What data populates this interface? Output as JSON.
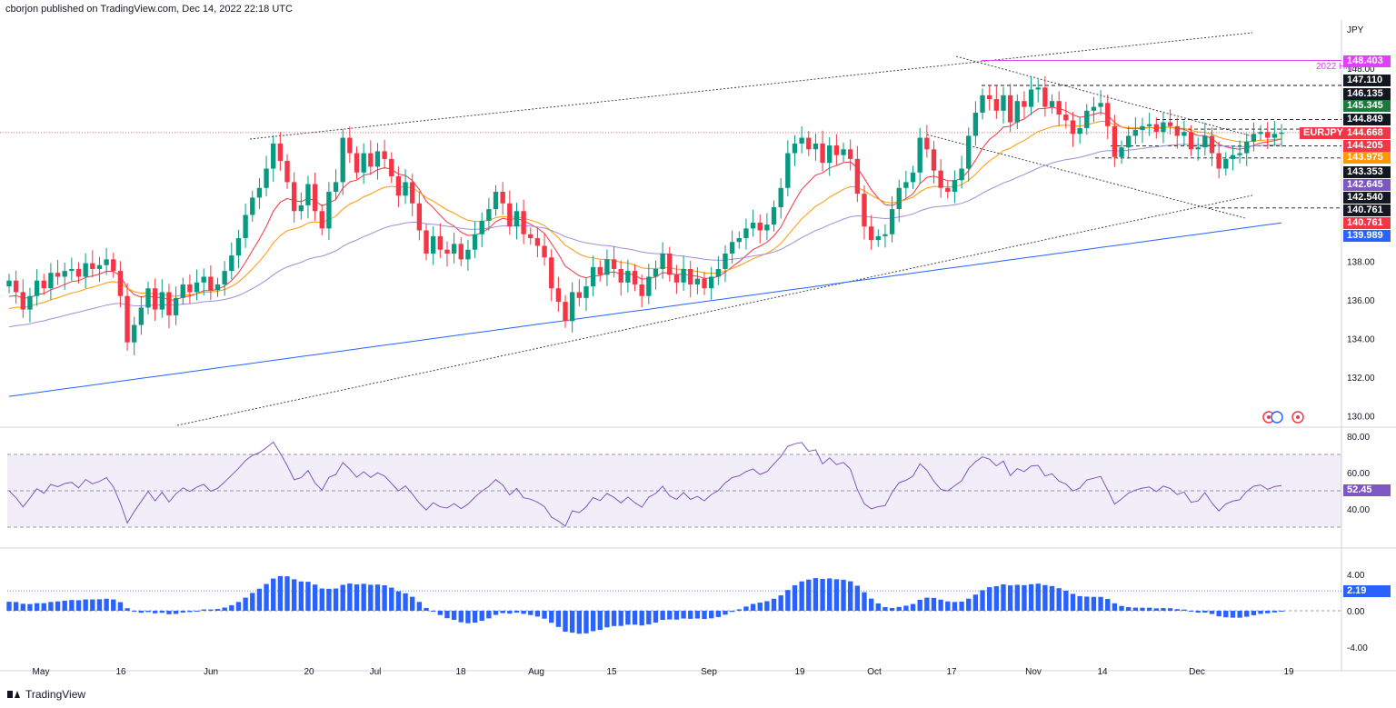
{
  "header": {
    "publisher_line": "cborjon published on TradingView.com, Dec 14, 2022 22:18 UTC"
  },
  "footer": {
    "brand": "TradingView"
  },
  "chart_data": {
    "type": "candlestick",
    "symbol": "EURJPY",
    "currency": "JPY",
    "price_axis": {
      "min": 129.5,
      "max": 150.5,
      "ticks": [
        130,
        132,
        134,
        136,
        138,
        140,
        142,
        144,
        146,
        148
      ]
    },
    "x_ticks": [
      "May",
      "16",
      "Jun",
      "20",
      "Jul",
      "18",
      "Aug",
      "15",
      "Sep",
      "19",
      "Oct",
      "17",
      "Nov",
      "14",
      "Dec",
      "19"
    ],
    "closes": [
      137,
      136.4,
      135.5,
      136.2,
      137.0,
      136.6,
      137.4,
      137.2,
      137.5,
      137.6,
      137.2,
      137.9,
      137.6,
      137.8,
      138.1,
      137.5,
      136.2,
      133.8,
      134.7,
      135.6,
      136.6,
      135.5,
      136.4,
      135.2,
      136.1,
      136.8,
      136.4,
      136.9,
      137.2,
      136.5,
      136.8,
      137.5,
      138.3,
      139.2,
      140.4,
      141.3,
      141.8,
      142.8,
      144.1,
      143.2,
      142.1,
      140.6,
      140.9,
      142.0,
      140.6,
      139.7,
      141.6,
      142.1,
      144.4,
      143.6,
      142.6,
      143.6,
      142.9,
      143.7,
      143.3,
      142.4,
      141.4,
      142.1,
      141.0,
      139.6,
      138.4,
      139.3,
      138.6,
      138.4,
      138.9,
      138.1,
      138.6,
      139.4,
      140.1,
      140.7,
      141.6,
      141.0,
      139.8,
      140.6,
      139.4,
      139.2,
      138.8,
      138.2,
      136.6,
      135.9,
      134.9,
      136.4,
      136.1,
      136.7,
      137.7,
      137.3,
      138.1,
      137.6,
      136.9,
      137.5,
      136.8,
      136.2,
      137.2,
      137.6,
      138.4,
      137.3,
      136.9,
      137.6,
      136.8,
      137.1,
      136.6,
      137.2,
      137.6,
      138.4,
      139.0,
      139.2,
      139.7,
      140.0,
      139.6,
      139.9,
      140.8,
      141.8,
      143.6,
      144.1,
      144.4,
      143.8,
      144.1,
      143.1,
      144.0,
      143.5,
      143.8,
      143.3,
      141.5,
      139.8,
      139.1,
      139.3,
      139.4,
      140.7,
      141.8,
      142.1,
      142.6,
      144.4,
      143.8,
      142.7,
      141.8,
      141.6,
      142.2,
      142.8,
      144.5,
      145.7,
      146.6,
      146.4,
      145.8,
      146.6,
      145.2,
      146.3,
      146.0,
      146.9,
      147.0,
      146.0,
      146.3,
      145.6,
      145.3,
      144.6,
      144.9,
      145.8,
      146.0,
      146.2,
      145.0,
      143.4,
      143.9,
      144.5,
      144.8,
      145.0,
      145.1,
      144.7,
      145.2,
      145.0,
      144.5,
      144.7,
      143.8,
      143.9,
      144.5,
      143.6,
      142.8,
      143.3,
      143.5,
      143.6,
      144.2,
      144.6,
      144.7,
      144.4,
      144.6,
      144.67
    ],
    "overlays": [
      {
        "name": "ema-fast",
        "color": "#f23645"
      },
      {
        "name": "ema-mid",
        "color": "#ff9800"
      },
      {
        "name": "ema-slow",
        "color": "#9c8fd8"
      },
      {
        "name": "ema-200",
        "color": "#2962ff"
      }
    ],
    "price_labels": [
      {
        "value": "148.403",
        "bg": "#e040fb",
        "fg": "#ffffff"
      },
      {
        "value": "147.110",
        "bg": "#131722",
        "fg": "#ffffff"
      },
      {
        "value": "146.135",
        "bg": "#131722",
        "fg": "#ffffff"
      },
      {
        "value": "145.345",
        "bg": "#1b7a3a",
        "fg": "#ffffff"
      },
      {
        "value": "144.849",
        "bg": "#131722",
        "fg": "#ffffff"
      },
      {
        "value": "144.668",
        "bg": "#f23645",
        "fg": "#ffffff"
      },
      {
        "value": "144.205",
        "bg": "#f23645",
        "fg": "#ffffff"
      },
      {
        "value": "143.975",
        "bg": "#ff9800",
        "fg": "#ffffff"
      },
      {
        "value": "143.353",
        "bg": "#131722",
        "fg": "#ffffff"
      },
      {
        "value": "142.645",
        "bg": "#7e57c2",
        "fg": "#ffffff"
      },
      {
        "value": "142.540",
        "bg": "#131722",
        "fg": "#ffffff"
      },
      {
        "value": "140.761",
        "bg": "#131722",
        "fg": "#ffffff"
      },
      {
        "value": "140.761",
        "bg": "#f23645",
        "fg": "#ffffff"
      },
      {
        "value": "139.989",
        "bg": "#2962ff",
        "fg": "#ffffff"
      }
    ],
    "annotations": {
      "high_label": "2022 High",
      "high_value": 148.403,
      "symbol_tag": "EURJPY"
    },
    "rsi": {
      "ticks": [
        "80.00",
        "60.00",
        "40.00"
      ],
      "last": "52.45",
      "upper": 70,
      "lower": 30,
      "mid": 50
    },
    "histogram": {
      "ticks": [
        "4.00",
        "0.00",
        "-4.00"
      ],
      "last": "2.19",
      "color": "#2962ff"
    }
  }
}
